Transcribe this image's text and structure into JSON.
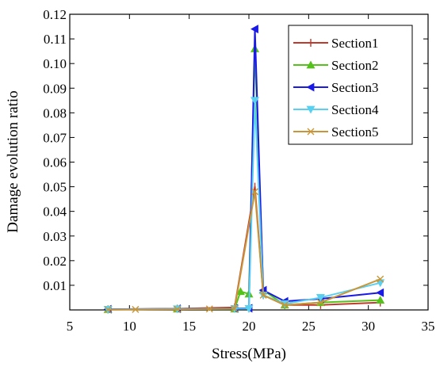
{
  "chart_data": {
    "type": "line",
    "title": "",
    "xlabel": "Stress(MPa)",
    "ylabel": "Damage evolution ratio",
    "xlim": [
      5,
      35
    ],
    "ylim": [
      0,
      0.12
    ],
    "xticks": [
      5,
      10,
      15,
      20,
      25,
      30,
      35
    ],
    "yticks": [
      0.01,
      0.02,
      0.03,
      0.04,
      0.05,
      0.06,
      0.07,
      0.08,
      0.09,
      0.1,
      0.11,
      0.12
    ],
    "ytick_labels": [
      "0.01",
      "0.02",
      "0.03",
      "0.04",
      "0.05",
      "0.06",
      "0.07",
      "0.08",
      "0.09",
      "0.10",
      "0.11",
      "0.12"
    ],
    "grid": false,
    "legend_position": "top-right",
    "series": [
      {
        "name": "Section1",
        "color": "#c0392b",
        "marker": "tick",
        "x": [
          8.2,
          14,
          18.8,
          20.5,
          21.2,
          23,
          26,
          31
        ],
        "y": [
          0.0002,
          0.0005,
          0.001,
          0.05,
          0.006,
          0.002,
          0.002,
          0.003
        ]
      },
      {
        "name": "Section2",
        "color": "#55c21b",
        "marker": "triangle-up",
        "x": [
          8.2,
          14,
          18.8,
          19.3,
          20.0,
          20.5,
          21.2,
          23,
          26,
          31
        ],
        "y": [
          0.0002,
          0.0004,
          0.0004,
          0.0075,
          0.0065,
          0.106,
          0.008,
          0.002,
          0.003,
          0.004
        ]
      },
      {
        "name": "Section3",
        "color": "#1a1ae6",
        "marker": "triangle-left",
        "x": [
          8.2,
          14,
          18.8,
          20.0,
          20.5,
          21.2,
          23,
          26,
          31
        ],
        "y": [
          0.0003,
          0.0005,
          0.0006,
          0.0007,
          0.114,
          0.008,
          0.0035,
          0.0045,
          0.007
        ]
      },
      {
        "name": "Section4",
        "color": "#5ad0f0",
        "marker": "triangle-down",
        "x": [
          8.2,
          14,
          18.8,
          20.0,
          20.5,
          21.2,
          23,
          26,
          31
        ],
        "y": [
          0.0002,
          0.0004,
          0.0005,
          0.0005,
          0.085,
          0.006,
          0.0025,
          0.005,
          0.011
        ]
      },
      {
        "name": "Section5",
        "color": "#c89638",
        "marker": "x",
        "x": [
          8.2,
          10.5,
          14,
          16.7,
          18.8,
          20.5,
          21.2,
          23,
          26,
          31
        ],
        "y": [
          0.0001,
          0.0002,
          0.0003,
          0.0004,
          0.0005,
          0.048,
          0.006,
          0.002,
          0.003,
          0.0125
        ]
      }
    ]
  }
}
